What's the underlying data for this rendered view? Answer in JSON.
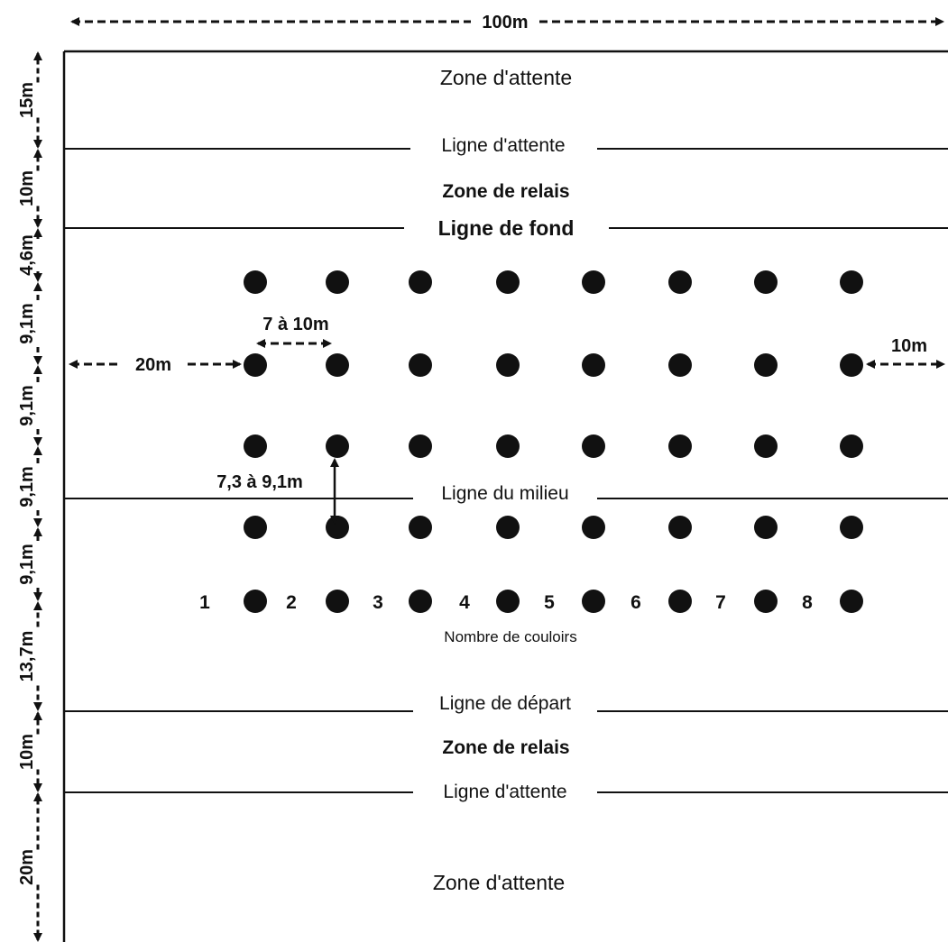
{
  "diagram": {
    "width_label": "100m",
    "zones": {
      "top_waiting": "Zone d'attente",
      "top_relay": "Zone de relais",
      "bottom_relay": "Zone de relais",
      "bottom_waiting": "Zone d'attente"
    },
    "lines": {
      "top_waiting_line": "Ligne d'attente",
      "back_line": "Ligne de fond",
      "middle_line": "Ligne du milieu",
      "start_line": "Ligne de départ",
      "bottom_waiting_line": "Ligne d'attente"
    },
    "vertical_dimensions": [
      "15m",
      "10m",
      "4,6m",
      "9,1m",
      "9,1m",
      "9,1m",
      "9,1m",
      "13,7m",
      "10m",
      "20m"
    ],
    "horizontal_dimensions": {
      "left_margin": "20m",
      "cone_spacing": "7 à 10m",
      "right_margin": "10m",
      "row_spacing": "7,3 à 9,1m"
    },
    "lane_numbers": [
      "1",
      "2",
      "3",
      "4",
      "5",
      "6",
      "7",
      "8"
    ],
    "lanes_caption": "Nombre de couloirs",
    "marker_rows": 5,
    "markers_per_row": 8,
    "colors": {
      "ink": "#111111",
      "background": "#ffffff"
    }
  }
}
